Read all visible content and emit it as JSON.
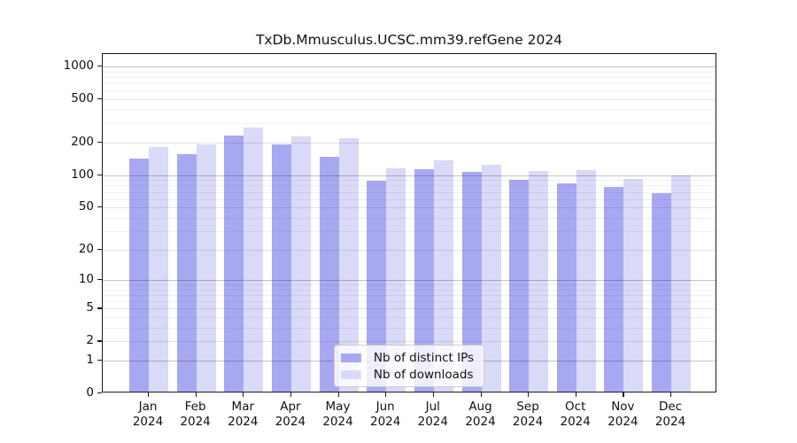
{
  "chart_data": {
    "type": "bar",
    "title": "TxDb.Mmusculus.UCSC.mm39.refGene 2024",
    "categories": [
      "Jan",
      "Feb",
      "Mar",
      "Apr",
      "May",
      "Jun",
      "Jul",
      "Aug",
      "Sep",
      "Oct",
      "Nov",
      "Dec"
    ],
    "category_year": "2024",
    "series": [
      {
        "name": "Nb of distinct IPs",
        "color": "#a8a8f2",
        "values": [
          138,
          152,
          222,
          187,
          142,
          85,
          109,
          103,
          87,
          81,
          75,
          66
        ]
      },
      {
        "name": "Nb of downloads",
        "color": "#d9d9f8",
        "values": [
          175,
          185,
          263,
          218,
          211,
          112,
          132,
          120,
          106,
          107,
          88,
          96
        ]
      }
    ],
    "yscale": "log1p",
    "ylim": [
      0,
      1300
    ],
    "yticks": [
      1000,
      500,
      200,
      100,
      50,
      20,
      10,
      5,
      2,
      1,
      0
    ],
    "yticks_minor": [
      900,
      800,
      700,
      600,
      400,
      300,
      90,
      80,
      70,
      60,
      40,
      30,
      9,
      8,
      7,
      6,
      4,
      3
    ],
    "grid": true,
    "legend_position": "lower center",
    "xlabel": "",
    "ylabel": ""
  }
}
